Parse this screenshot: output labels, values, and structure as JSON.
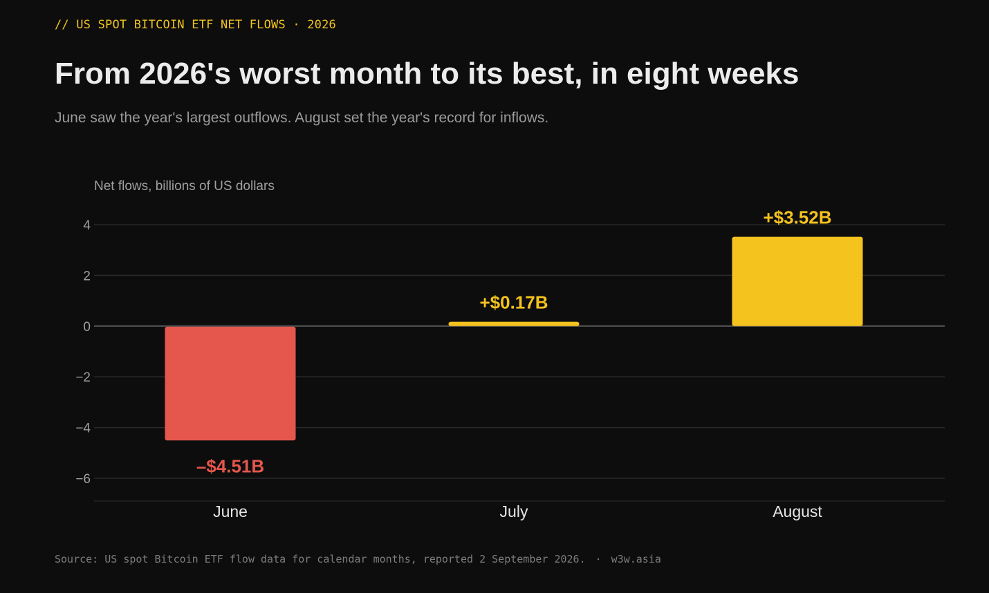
{
  "kicker": "// US SPOT BITCOIN ETF NET FLOWS · 2026",
  "headline": "From 2026's worst month to its best, in eight weeks",
  "subhead": "June saw the year's largest outflows. August set the year's record for inflows.",
  "footer": {
    "source": "Source: US spot Bitcoin ETF flow data for calendar months, reported 2 September 2026.",
    "separator": "·",
    "site": "w3w.asia"
  },
  "colors": {
    "background": "#0d0d0d",
    "negative": "#e5574d",
    "positive": "#f5c31e",
    "kicker": "#f2c41f",
    "grid": "#2a2a2a",
    "zero_line": "#5a5a5a"
  },
  "chart_data": {
    "type": "bar",
    "ylabel": "Net flows, billions of US dollars",
    "xlabel": "",
    "categories": [
      "June",
      "July",
      "August"
    ],
    "values": [
      -4.51,
      0.17,
      3.52
    ],
    "value_labels": [
      "–$4.51B",
      "+$0.17B",
      "+$3.52B"
    ],
    "ylim": [
      -6.9,
      4.9
    ],
    "yticks": [
      4,
      2,
      0,
      -2,
      -4,
      -6
    ],
    "ytick_labels": [
      "4",
      "2",
      "0",
      "−2",
      "−4",
      "−6"
    ],
    "grid": true,
    "legend": "none"
  }
}
